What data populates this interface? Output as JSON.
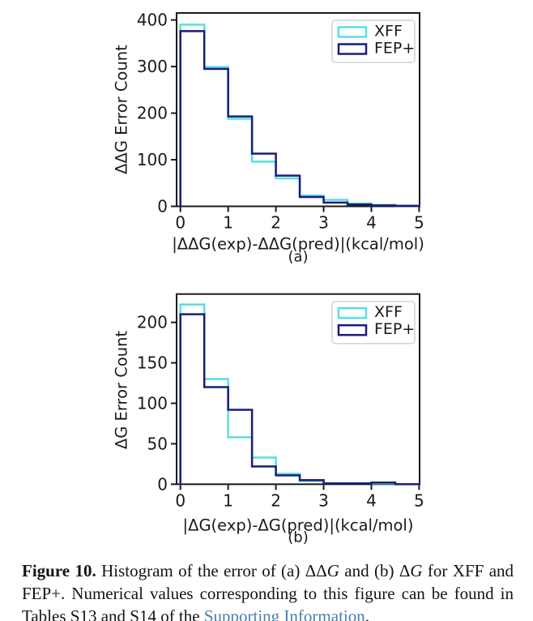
{
  "figure": {
    "background": "#ffffff",
    "axis_color": "#1a1a1a"
  },
  "chart_data": [
    {
      "type": "histogram-step",
      "panel": "(a)",
      "xlabel": "|ΔΔG(exp)-ΔΔG(pred)|(kcal/mol)",
      "ylabel": "ΔΔG Error Count",
      "bin_start": 0,
      "bin_width": 0.5,
      "xlim": [
        -0.08,
        5.01
      ],
      "ylim": [
        0,
        415
      ],
      "xticks": [
        0,
        1,
        2,
        3,
        4,
        5
      ],
      "yticks": [
        0,
        100,
        200,
        300,
        400
      ],
      "grid": false,
      "legend_position": "upper right",
      "series": [
        {
          "name": "XFF",
          "color": "#58dfe2",
          "values": [
            390,
            299,
            188,
            96,
            60,
            23,
            14,
            6,
            3,
            1
          ]
        },
        {
          "name": "FEP+",
          "color": "#1a1c7d",
          "values": [
            376,
            295,
            193,
            113,
            66,
            20,
            8,
            4,
            2,
            1
          ]
        }
      ]
    },
    {
      "type": "histogram-step",
      "panel": "(b)",
      "xlabel": "|ΔG(exp)-ΔG(pred)|(kcal/mol)",
      "ylabel": "ΔG Error Count",
      "bin_start": 0,
      "bin_width": 0.5,
      "xlim": [
        -0.08,
        5.01
      ],
      "ylim": [
        0,
        235
      ],
      "xticks": [
        0,
        1,
        2,
        3,
        4,
        5
      ],
      "yticks": [
        0,
        50,
        100,
        150,
        200
      ],
      "grid": false,
      "legend_position": "upper right",
      "series": [
        {
          "name": "XFF",
          "color": "#58dfe2",
          "values": [
            222,
            130,
            58,
            33,
            13,
            4,
            1,
            1,
            1,
            0
          ]
        },
        {
          "name": "FEP+",
          "color": "#1a1c7d",
          "values": [
            210,
            120,
            92,
            22,
            11,
            5,
            1,
            1,
            2,
            0
          ]
        }
      ]
    }
  ],
  "caption": {
    "link_color": "#4a7dab",
    "segments": [
      {
        "text": "Figure 10.",
        "style": "bold"
      },
      {
        "text": " Histogram of the error of (a) ",
        "style": "normal"
      },
      {
        "text": "ΔΔ",
        "style": "normal"
      },
      {
        "text": "G",
        "style": "italic"
      },
      {
        "text": " and (b) ",
        "style": "normal"
      },
      {
        "text": "Δ",
        "style": "normal"
      },
      {
        "text": "G",
        "style": "italic"
      },
      {
        "text": " for XFF and FEP+. Numerical values corresponding to this figure can be found in Tables S13 and S14 of the ",
        "style": "normal"
      },
      {
        "text": "Supporting Information",
        "style": "link"
      },
      {
        "text": ".",
        "style": "normal"
      }
    ]
  }
}
